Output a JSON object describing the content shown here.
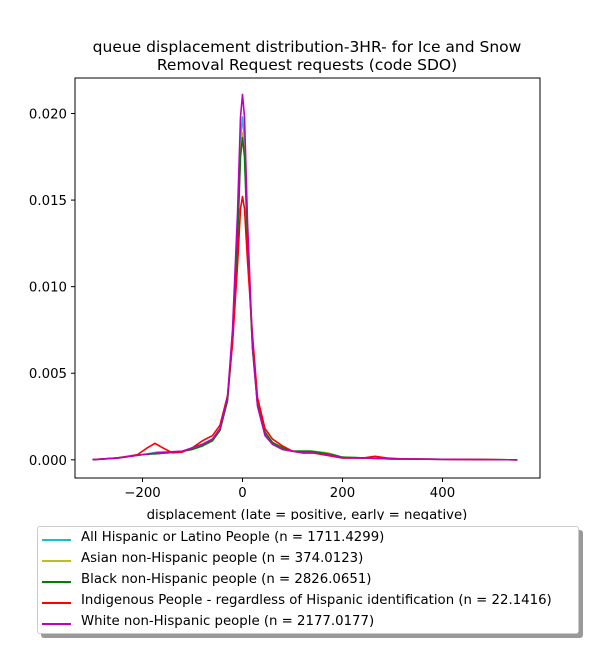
{
  "chart_data": {
    "type": "line",
    "title": "queue displacement distribution-3HR-  for Ice and Snow\nRemoval Request  requests (code SDO)",
    "xlabel": "displacement (late = positive, early = negative)",
    "ylabel": "",
    "xlim": [
      -335,
      595
    ],
    "ylim": [
      -0.00105,
      0.02205
    ],
    "xticks": [
      -200,
      0,
      200,
      400
    ],
    "xtick_labels": [
      "−200",
      "0",
      "200",
      "400"
    ],
    "yticks": [
      0.0,
      0.005,
      0.01,
      0.015,
      0.02
    ],
    "ytick_labels": [
      "0.000",
      "0.005",
      "0.010",
      "0.015",
      "0.020"
    ],
    "grid": false,
    "legend_position": "below",
    "series": [
      {
        "name": "All Hispanic or Latino People (n = 1711.4299)",
        "color": "#17becf",
        "points": [
          [
            -300,
            1e-05
          ],
          [
            -250,
            0.0001
          ],
          [
            -200,
            0.0003
          ],
          [
            -170,
            0.00045
          ],
          [
            -150,
            0.00045
          ],
          [
            -120,
            0.0005
          ],
          [
            -100,
            0.0007
          ],
          [
            -80,
            0.0009
          ],
          [
            -60,
            0.0012
          ],
          [
            -45,
            0.0018
          ],
          [
            -30,
            0.0035
          ],
          [
            -20,
            0.007
          ],
          [
            -10,
            0.013
          ],
          [
            -4,
            0.0185
          ],
          [
            0,
            0.0198
          ],
          [
            4,
            0.0185
          ],
          [
            10,
            0.013
          ],
          [
            20,
            0.0065
          ],
          [
            30,
            0.0032
          ],
          [
            45,
            0.0015
          ],
          [
            60,
            0.0009
          ],
          [
            80,
            0.0006
          ],
          [
            100,
            0.0005
          ],
          [
            120,
            0.0005
          ],
          [
            140,
            0.0005
          ],
          [
            170,
            0.0004
          ],
          [
            200,
            0.00015
          ],
          [
            250,
            0.0001
          ],
          [
            300,
            5e-05
          ],
          [
            400,
            3e-05
          ],
          [
            550,
            0.0
          ]
        ]
      },
      {
        "name": "Asian non-Hispanic people (n = 374.0123)",
        "color": "#bcbd22",
        "points": [
          [
            -300,
            1e-05
          ],
          [
            -250,
            0.0001
          ],
          [
            -200,
            0.0003
          ],
          [
            -170,
            0.0004
          ],
          [
            -150,
            0.0004
          ],
          [
            -120,
            0.00045
          ],
          [
            -100,
            0.0007
          ],
          [
            -80,
            0.0009
          ],
          [
            -60,
            0.0012
          ],
          [
            -45,
            0.0018
          ],
          [
            -30,
            0.0035
          ],
          [
            -20,
            0.007
          ],
          [
            -10,
            0.0128
          ],
          [
            -4,
            0.0178
          ],
          [
            0,
            0.0189
          ],
          [
            4,
            0.0178
          ],
          [
            10,
            0.0128
          ],
          [
            20,
            0.0066
          ],
          [
            30,
            0.0033
          ],
          [
            45,
            0.0016
          ],
          [
            60,
            0.001
          ],
          [
            80,
            0.0007
          ],
          [
            100,
            0.0005
          ],
          [
            120,
            0.0005
          ],
          [
            140,
            0.0005
          ],
          [
            170,
            0.0004
          ],
          [
            200,
            0.00015
          ],
          [
            250,
            0.0001
          ],
          [
            300,
            5e-05
          ],
          [
            400,
            3e-05
          ],
          [
            550,
            0.0
          ]
        ]
      },
      {
        "name": "Black non-Hispanic people (n = 2826.0651)",
        "color": "#008000",
        "points": [
          [
            -300,
            1e-05
          ],
          [
            -250,
            0.00012
          ],
          [
            -200,
            0.0003
          ],
          [
            -170,
            0.00035
          ],
          [
            -150,
            0.0004
          ],
          [
            -120,
            0.0005
          ],
          [
            -100,
            0.0006
          ],
          [
            -80,
            0.0008
          ],
          [
            -60,
            0.0011
          ],
          [
            -45,
            0.0017
          ],
          [
            -30,
            0.0034
          ],
          [
            -20,
            0.0068
          ],
          [
            -10,
            0.0125
          ],
          [
            -4,
            0.0175
          ],
          [
            0,
            0.0186
          ],
          [
            4,
            0.0175
          ],
          [
            10,
            0.0125
          ],
          [
            20,
            0.0064
          ],
          [
            30,
            0.0032
          ],
          [
            45,
            0.0016
          ],
          [
            60,
            0.001
          ],
          [
            80,
            0.0007
          ],
          [
            100,
            0.0005
          ],
          [
            120,
            0.0005
          ],
          [
            135,
            0.0005
          ],
          [
            160,
            0.0004
          ],
          [
            180,
            0.0003
          ],
          [
            200,
            0.00015
          ],
          [
            250,
            0.0001
          ],
          [
            300,
            5e-05
          ],
          [
            400,
            3e-05
          ],
          [
            550,
            0.0
          ]
        ]
      },
      {
        "name": "Indigenous People - regardless of Hispanic identification (n = 22.1416)",
        "color": "#ff0000",
        "points": [
          [
            -300,
            1e-05
          ],
          [
            -250,
            0.0001
          ],
          [
            -210,
            0.0003
          ],
          [
            -190,
            0.0007
          ],
          [
            -175,
            0.00095
          ],
          [
            -160,
            0.0007
          ],
          [
            -140,
            0.0004
          ],
          [
            -120,
            0.00045
          ],
          [
            -100,
            0.0007
          ],
          [
            -80,
            0.0011
          ],
          [
            -60,
            0.0014
          ],
          [
            -45,
            0.002
          ],
          [
            -30,
            0.0037
          ],
          [
            -20,
            0.0067
          ],
          [
            -10,
            0.0112
          ],
          [
            -4,
            0.0145
          ],
          [
            0,
            0.0152
          ],
          [
            4,
            0.0145
          ],
          [
            10,
            0.0115
          ],
          [
            20,
            0.0072
          ],
          [
            30,
            0.0036
          ],
          [
            45,
            0.0018
          ],
          [
            60,
            0.0012
          ],
          [
            80,
            0.0008
          ],
          [
            100,
            0.0005
          ],
          [
            120,
            0.0004
          ],
          [
            140,
            0.0004
          ],
          [
            160,
            0.0003
          ],
          [
            180,
            0.0002
          ],
          [
            200,
            0.0001
          ],
          [
            240,
            0.0001
          ],
          [
            265,
            0.0002
          ],
          [
            290,
            0.0001
          ],
          [
            320,
            5e-05
          ],
          [
            400,
            3e-05
          ],
          [
            550,
            0.0
          ]
        ]
      },
      {
        "name": "White non-Hispanic people (n = 2177.0177)",
        "color": "#bf00bf",
        "points": [
          [
            -300,
            1e-05
          ],
          [
            -250,
            0.0001
          ],
          [
            -200,
            0.0003
          ],
          [
            -170,
            0.0004
          ],
          [
            -150,
            0.00045
          ],
          [
            -120,
            0.0005
          ],
          [
            -100,
            0.0007
          ],
          [
            -80,
            0.0009
          ],
          [
            -60,
            0.0012
          ],
          [
            -45,
            0.0018
          ],
          [
            -30,
            0.0036
          ],
          [
            -20,
            0.0075
          ],
          [
            -10,
            0.0142
          ],
          [
            -4,
            0.0198
          ],
          [
            0,
            0.0211
          ],
          [
            4,
            0.0198
          ],
          [
            10,
            0.0138
          ],
          [
            20,
            0.0066
          ],
          [
            30,
            0.0031
          ],
          [
            45,
            0.0014
          ],
          [
            60,
            0.0009
          ],
          [
            80,
            0.0006
          ],
          [
            100,
            0.0005
          ],
          [
            120,
            0.0004
          ],
          [
            140,
            0.0004
          ],
          [
            170,
            0.0003
          ],
          [
            200,
            0.00012
          ],
          [
            250,
            0.0001
          ],
          [
            300,
            5e-05
          ],
          [
            400,
            3e-05
          ],
          [
            550,
            0.0
          ]
        ]
      }
    ]
  }
}
